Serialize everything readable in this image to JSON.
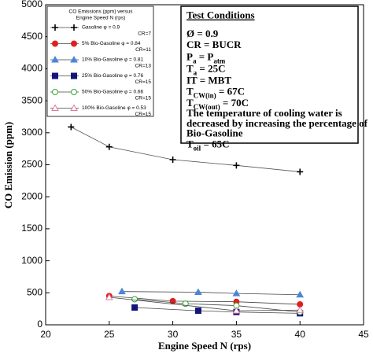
{
  "chart_data": {
    "type": "scatter",
    "xlabel": "Engine Speed N (rps)",
    "ylabel": "CO Emission (ppm)",
    "xlim": [
      20,
      45
    ],
    "xticks": [
      20,
      25,
      30,
      35,
      40,
      45
    ],
    "ylim": [
      0,
      5000
    ],
    "yticks": [
      0,
      500,
      1000,
      1500,
      2000,
      2500,
      3000,
      3500,
      4000,
      4500,
      5000
    ],
    "legend_title": [
      "CO Emissions (ppm) versus",
      "Engine Speed N (rps)"
    ],
    "legend_position": "upper left",
    "series": [
      {
        "name": "Gasoline φ = 0.9",
        "cr": "CR=7",
        "color": "#000000",
        "marker": "plus",
        "x": [
          22,
          25,
          30,
          35,
          40
        ],
        "values": [
          3090,
          2780,
          2580,
          2490,
          2390
        ]
      },
      {
        "name": "5% Bio-Gasoline φ = 0.84",
        "cr": "CR=11",
        "color": "#e0201e",
        "marker": "circle",
        "x": [
          25,
          30,
          35,
          40
        ],
        "values": [
          450,
          370,
          360,
          320
        ]
      },
      {
        "name": "10% Bio-Gasoline φ = 0.81",
        "cr": "CR=13",
        "color": "#4a86d8",
        "marker": "triangle",
        "x": [
          26,
          32,
          35,
          40
        ],
        "values": [
          520,
          510,
          490,
          470
        ]
      },
      {
        "name": "25% Bio-Gasoline φ = 0.76",
        "cr": "CR=15",
        "color": "#14157a",
        "marker": "square",
        "x": [
          27,
          32,
          35,
          40
        ],
        "values": [
          270,
          220,
          200,
          180
        ]
      },
      {
        "name": "50% Bio-Gasoline φ = 0.66",
        "cr": "CR=15",
        "color": "#2eaa2e",
        "marker": "circle-open",
        "x": [
          27,
          31,
          35,
          40
        ],
        "values": [
          400,
          330,
          300,
          200
        ]
      },
      {
        "name": "100% Bio-Gasoline φ = 0.53",
        "cr": "CR=15",
        "color": "#e07aa0",
        "marker": "triangle-open",
        "x": [
          25,
          35,
          40
        ],
        "values": [
          430,
          220,
          230
        ]
      }
    ],
    "conditions": [
      [
        {
          "text": "Test Conditions"
        }
      ],
      [
        {
          "text": "Ø = 0.9"
        }
      ],
      [
        {
          "text": "CR = BUCR"
        }
      ],
      [
        {
          "text": "P"
        },
        {
          "text": "a",
          "sub": true
        },
        {
          "text": " = P"
        },
        {
          "text": "atm",
          "sub": true
        }
      ],
      [
        {
          "text": "T"
        },
        {
          "text": "a",
          "sub": true
        },
        {
          "text": " = 25C"
        }
      ],
      [
        {
          "text": "IT = MBT"
        }
      ],
      [
        {
          "text": "T"
        },
        {
          "text": "CW(in)",
          "sub": true
        },
        {
          "text": " = 67C"
        }
      ],
      [
        {
          "text": "T"
        },
        {
          "text": "CW(out)",
          "sub": true
        },
        {
          "text": " = 70C"
        }
      ],
      [
        {
          "text": "The temperature of cooling water is"
        }
      ],
      [
        {
          "text": "decreased by increasing the percentage of"
        }
      ],
      [
        {
          "text": "Bio-Gasoline"
        }
      ],
      [
        {
          "text": "T"
        },
        {
          "text": "oil",
          "sub": true
        },
        {
          "text": " = 65C"
        }
      ]
    ]
  }
}
